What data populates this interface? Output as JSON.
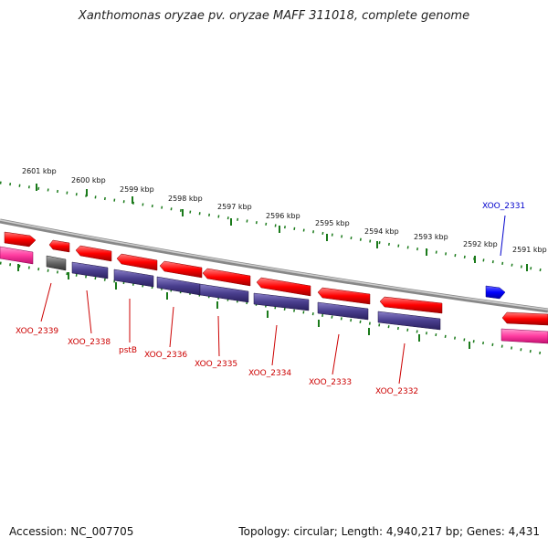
{
  "title": "Xanthomonas oryzae pv. oryzae MAFF 311018, complete genome",
  "accession": "Accession: NC_007705",
  "summary": "Topology: circular; Length: 4,940,217 bp; Genes: 4,431",
  "kbp_labels": [
    "2601 kbp",
    "2600 kbp",
    "2599 kbp",
    "2598 kbp",
    "2597 kbp",
    "2596 kbp",
    "2595 kbp",
    "2594 kbp",
    "2593 kbp",
    "2592 kbp",
    "2591 kbp"
  ],
  "gene_labels": [
    "XOO_2339",
    "XOO_2338",
    "pstB",
    "XOO_2336",
    "XOO_2335",
    "XOO_2334",
    "XOO_2333",
    "XOO_2332",
    "XOO_2331"
  ],
  "colors": {
    "forward_gene": "#ff0000",
    "reverse_gene": "#4a3f8f",
    "highlight_gene": "#0000ff",
    "rna_feature": "#ff3ca0",
    "pseudo_gene": "#666666",
    "backbone": "#888888",
    "tick": "#1a7a1a",
    "label_red": "#cc0000",
    "label_blue": "#0000cc"
  }
}
